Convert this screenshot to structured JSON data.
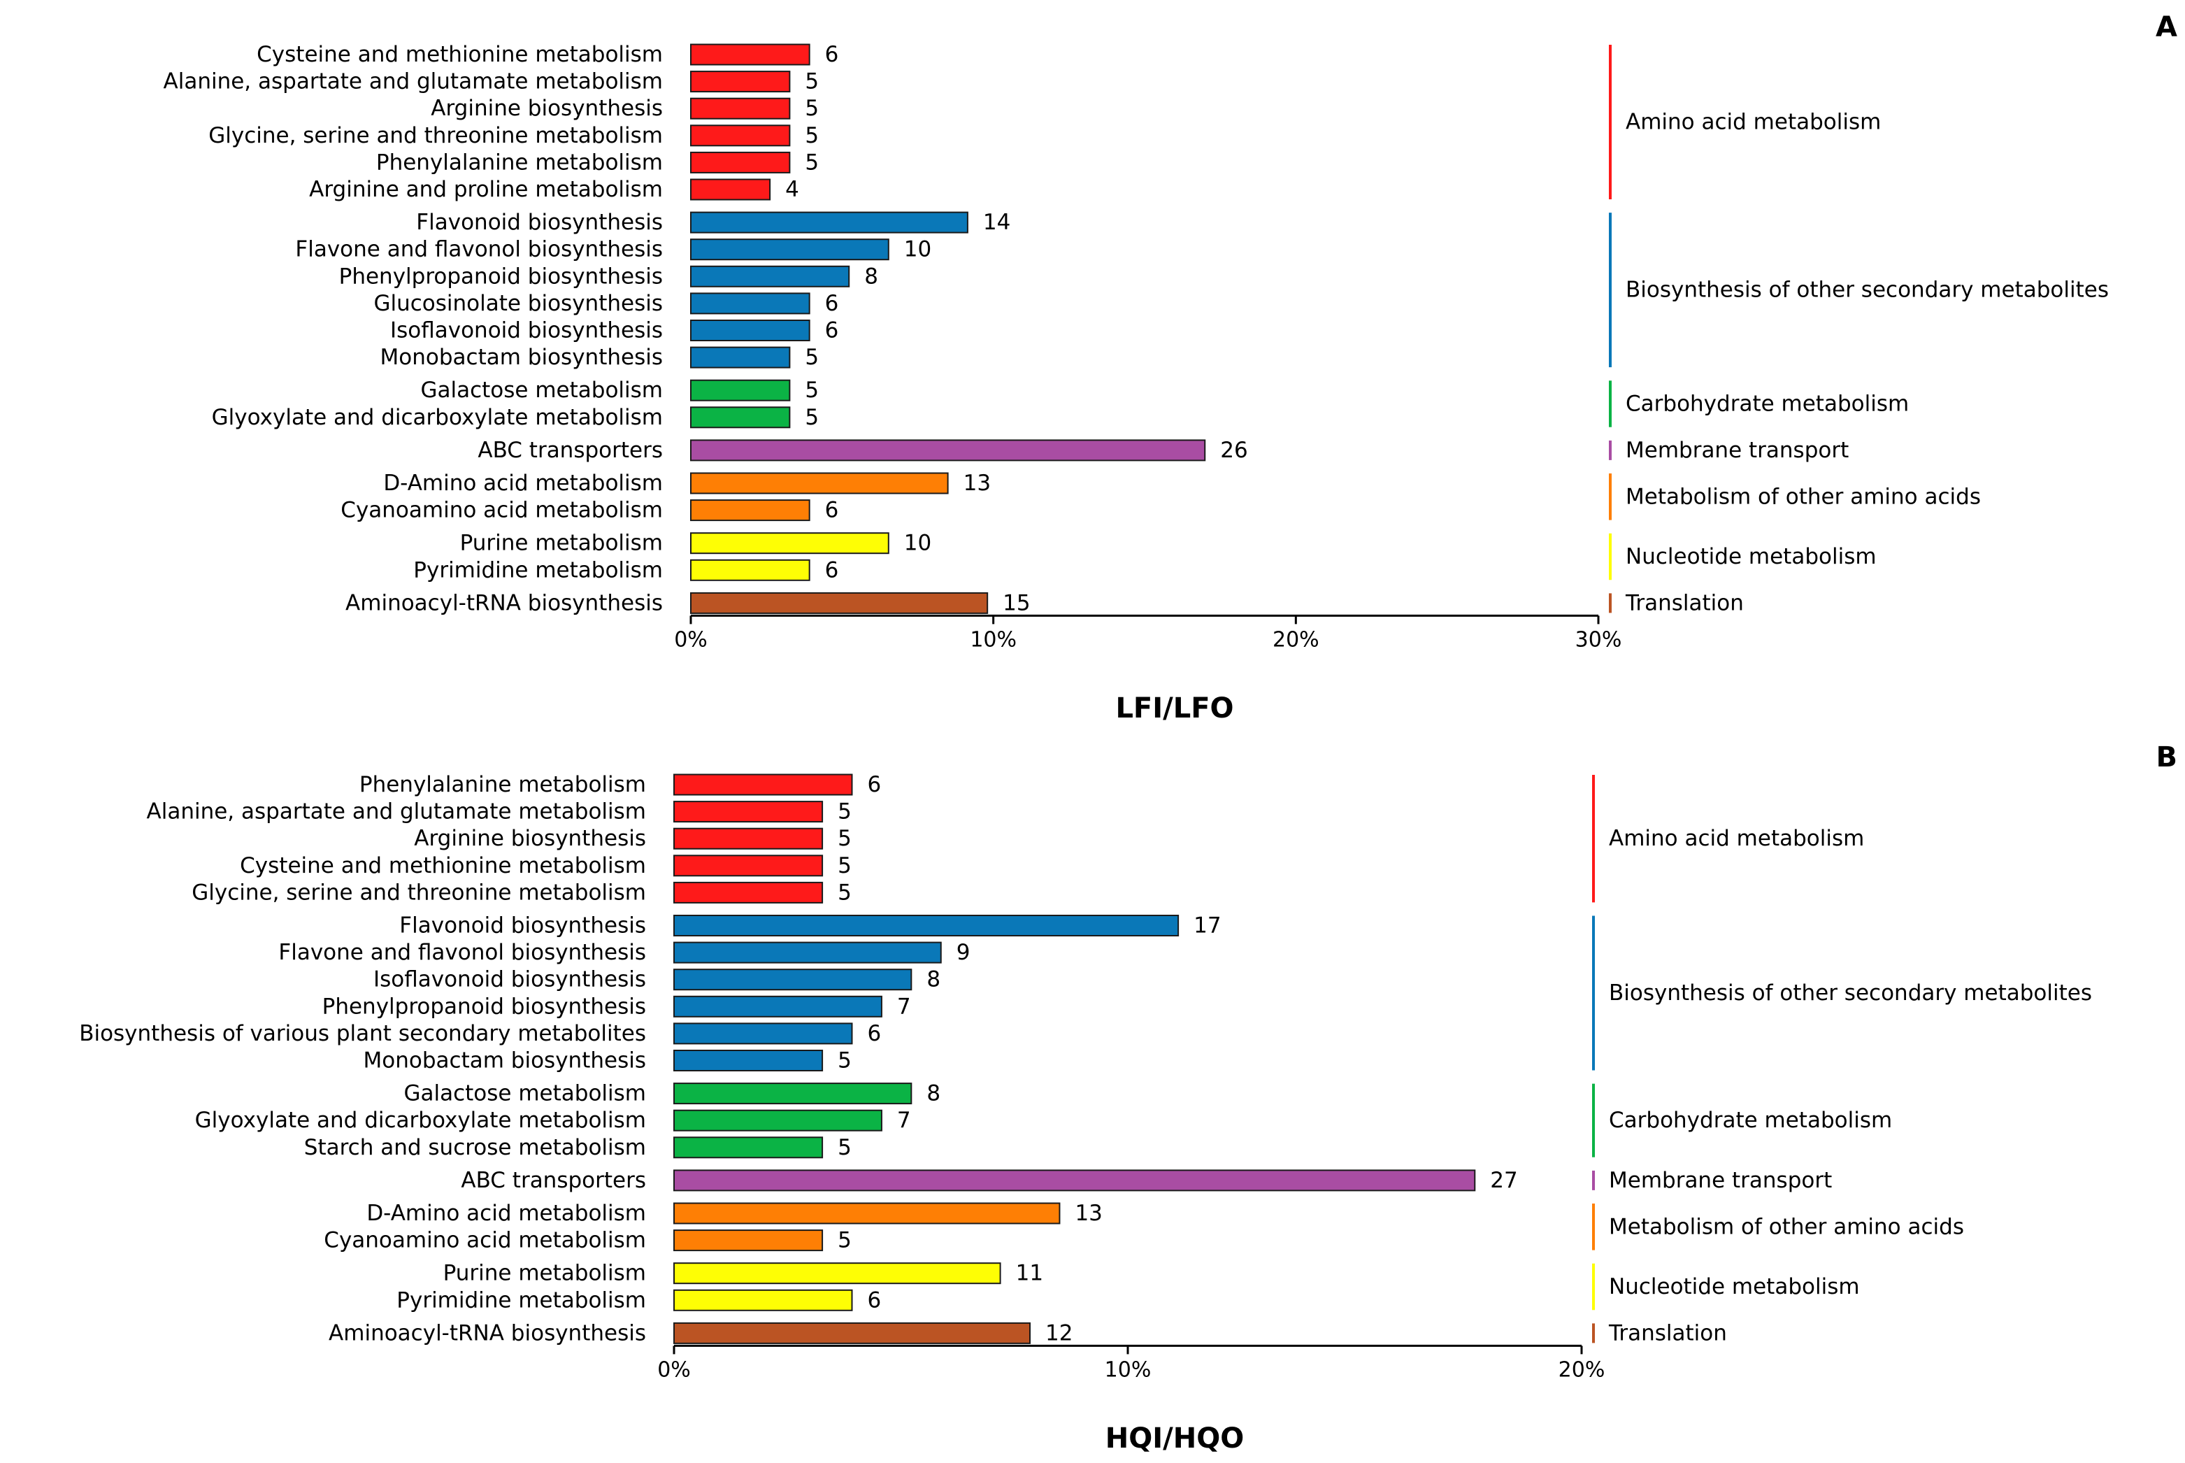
{
  "colors": {
    "Amino acid metabolism": "#fe1a1a",
    "Biosynthesis of other secondary metabolites": "#0a78b8",
    "Carbohydrate metabolism": "#0bb345",
    "Membrane transport": "#a94da3",
    "Metabolism of other amino acids": "#fe7f05",
    "Nucleotide metabolism": "#fefe05",
    "Translation": "#bb5423"
  },
  "chart_data": [
    {
      "type": "bar",
      "orientation": "horizontal",
      "panel": "A",
      "title": "LFI/LFO",
      "xlim": [
        0,
        30
      ],
      "xticks": [
        "0%",
        "10%",
        "20%",
        "30%"
      ],
      "groups": [
        {
          "name": "Amino acid metabolism",
          "items": [
            {
              "label": "Cysteine and methionine metabolism",
              "value": 6
            },
            {
              "label": "Alanine, aspartate and glutamate metabolism",
              "value": 5
            },
            {
              "label": "Arginine biosynthesis",
              "value": 5
            },
            {
              "label": "Glycine, serine and threonine metabolism",
              "value": 5
            },
            {
              "label": "Phenylalanine metabolism",
              "value": 5
            },
            {
              "label": "Arginine and proline metabolism",
              "value": 4
            }
          ]
        },
        {
          "name": "Biosynthesis of other secondary metabolites",
          "items": [
            {
              "label": "Flavonoid biosynthesis",
              "value": 14
            },
            {
              "label": "Flavone and flavonol biosynthesis",
              "value": 10
            },
            {
              "label": "Phenylpropanoid biosynthesis",
              "value": 8
            },
            {
              "label": "Glucosinolate biosynthesis",
              "value": 6
            },
            {
              "label": "Isoflavonoid biosynthesis",
              "value": 6
            },
            {
              "label": "Monobactam biosynthesis",
              "value": 5
            }
          ]
        },
        {
          "name": "Carbohydrate metabolism",
          "items": [
            {
              "label": "Galactose metabolism",
              "value": 5
            },
            {
              "label": "Glyoxylate and dicarboxylate metabolism",
              "value": 5
            }
          ]
        },
        {
          "name": "Membrane transport",
          "items": [
            {
              "label": "ABC transporters",
              "value": 26
            }
          ]
        },
        {
          "name": "Metabolism of other amino acids",
          "items": [
            {
              "label": "D-Amino acid metabolism",
              "value": 13
            },
            {
              "label": "Cyanoamino acid metabolism",
              "value": 6
            }
          ]
        },
        {
          "name": "Nucleotide metabolism",
          "items": [
            {
              "label": "Purine metabolism",
              "value": 10
            },
            {
              "label": "Pyrimidine metabolism",
              "value": 6
            }
          ]
        },
        {
          "name": "Translation",
          "items": [
            {
              "label": "Aminoacyl-tRNA biosynthesis",
              "value": 15
            }
          ]
        }
      ]
    },
    {
      "type": "bar",
      "orientation": "horizontal",
      "panel": "B",
      "title": "HQI/HQO",
      "xlim": [
        0,
        20
      ],
      "xticks": [
        "0%",
        "10%",
        "20%"
      ],
      "groups": [
        {
          "name": "Amino acid metabolism",
          "items": [
            {
              "label": "Phenylalanine metabolism",
              "value": 6
            },
            {
              "label": "Alanine, aspartate and glutamate metabolism",
              "value": 5
            },
            {
              "label": "Arginine biosynthesis",
              "value": 5
            },
            {
              "label": "Cysteine and methionine metabolism",
              "value": 5
            },
            {
              "label": "Glycine, serine and threonine metabolism",
              "value": 5
            }
          ]
        },
        {
          "name": "Biosynthesis of other secondary metabolites",
          "items": [
            {
              "label": "Flavonoid biosynthesis",
              "value": 17
            },
            {
              "label": "Flavone and flavonol biosynthesis",
              "value": 9
            },
            {
              "label": "Isoflavonoid biosynthesis",
              "value": 8
            },
            {
              "label": "Phenylpropanoid biosynthesis",
              "value": 7
            },
            {
              "label": "Biosynthesis of various plant secondary metabolites",
              "value": 6
            },
            {
              "label": "Monobactam biosynthesis",
              "value": 5
            }
          ]
        },
        {
          "name": "Carbohydrate metabolism",
          "items": [
            {
              "label": "Galactose metabolism",
              "value": 8
            },
            {
              "label": "Glyoxylate and dicarboxylate metabolism",
              "value": 7
            },
            {
              "label": "Starch and sucrose metabolism",
              "value": 5
            }
          ]
        },
        {
          "name": "Membrane transport",
          "items": [
            {
              "label": "ABC transporters",
              "value": 27
            }
          ]
        },
        {
          "name": "Metabolism of other amino acids",
          "items": [
            {
              "label": "D-Amino acid metabolism",
              "value": 13
            },
            {
              "label": "Cyanoamino acid metabolism",
              "value": 5
            }
          ]
        },
        {
          "name": "Nucleotide metabolism",
          "items": [
            {
              "label": "Purine metabolism",
              "value": 11
            },
            {
              "label": "Pyrimidine metabolism",
              "value": 6
            }
          ]
        },
        {
          "name": "Translation",
          "items": [
            {
              "label": "Aminoacyl-tRNA biosynthesis",
              "value": 12
            }
          ]
        }
      ]
    }
  ]
}
